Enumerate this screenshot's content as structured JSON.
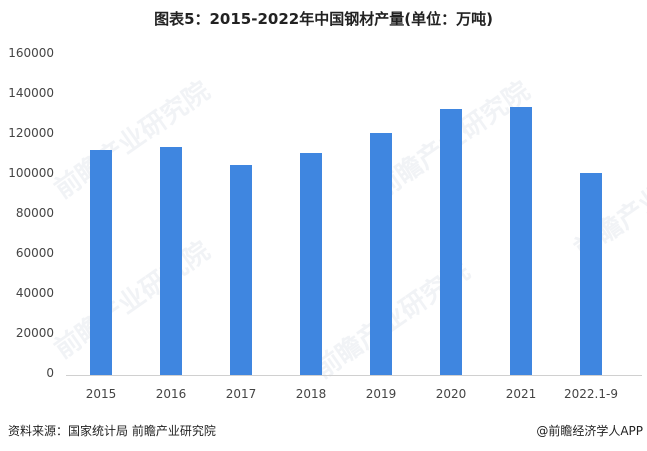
{
  "title": "图表5：2015-2022年中国钢材产量(单位：万吨)",
  "chart_data": {
    "type": "bar",
    "title": "图表5：2015-2022年中国钢材产量(单位：万吨)",
    "xlabel": "",
    "ylabel": "万吨",
    "categories": [
      "2015",
      "2016",
      "2017",
      "2018",
      "2019",
      "2020",
      "2021",
      "2022.1-9"
    ],
    "values": [
      112350,
      113801,
      104642,
      110552,
      120457,
      132489,
      133667,
      100773
    ],
    "ylim": [
      0,
      160000
    ],
    "yticks": [
      0,
      20000,
      40000,
      60000,
      80000,
      100000,
      120000,
      140000,
      160000
    ],
    "grid": false,
    "legend": null,
    "bar_color": "#3f86e0"
  },
  "yticks": [
    "160000",
    "140000",
    "120000",
    "100000",
    "80000",
    "60000",
    "40000",
    "20000",
    "0"
  ],
  "xticks": [
    "2015",
    "2016",
    "2017",
    "2018",
    "2019",
    "2020",
    "2021",
    "2022.1-9"
  ],
  "footer": {
    "source": "资料来源：国家统计局 前瞻产业研究院",
    "credit": "@前瞻经济学人APP"
  },
  "watermark": "前瞻产业研究院"
}
